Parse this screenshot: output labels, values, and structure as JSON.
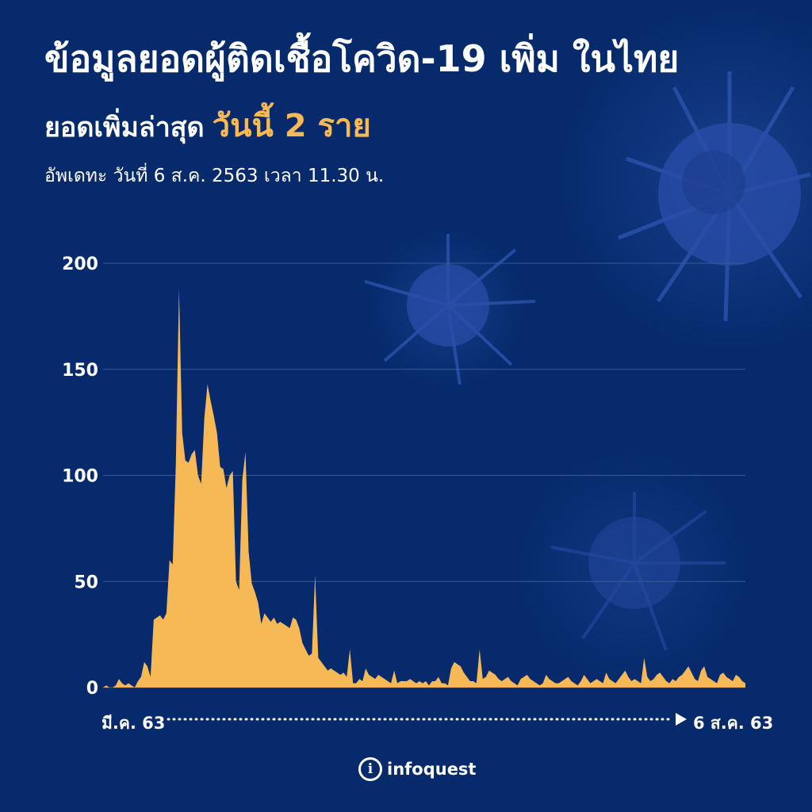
{
  "header": {
    "title": "ข้อมูลยอดผู้ติดเชื้อโควิด-19 เพิ่ม ในไทย",
    "subtitle_lead": "ยอดเพิ่มล่าสุด",
    "subtitle_highlight": "วันนี้ 2 ราย",
    "updated": "อัพเดทะ วันที่ 6 ส.ค. 2563 เวลา 11.30 น."
  },
  "colors": {
    "background": "#062a6b",
    "area_fill": "#f7b955",
    "highlight_text": "#f7b955",
    "gridline": "#3a5a9a"
  },
  "chart_data": {
    "type": "area",
    "x_start_label": "มี.ค. 63",
    "x_end_label": "6 ส.ค. 63",
    "y_ticks": [
      0,
      50,
      100,
      150,
      200
    ],
    "ylim": [
      0,
      200
    ],
    "grid": true,
    "values": [
      0,
      1,
      0,
      0,
      1,
      4,
      2,
      1,
      2,
      1,
      0,
      3,
      5,
      12,
      10,
      5,
      32,
      33,
      34,
      32,
      35,
      60,
      58,
      106,
      188,
      120,
      107,
      106,
      110,
      112,
      100,
      96,
      127,
      143,
      135,
      128,
      120,
      104,
      103,
      94,
      100,
      102,
      50,
      46,
      98,
      111,
      64,
      49,
      45,
      40,
      30,
      35,
      33,
      31,
      33,
      30,
      31,
      30,
      29,
      28,
      33,
      32,
      28,
      21,
      18,
      15,
      16,
      53,
      14,
      12,
      10,
      8,
      9,
      8,
      7,
      6,
      7,
      5,
      18,
      2,
      2,
      4,
      3,
      9,
      6,
      5,
      4,
      6,
      5,
      4,
      3,
      2,
      8,
      2,
      3,
      3,
      3,
      4,
      3,
      2,
      3,
      2,
      3,
      1,
      3,
      3,
      5,
      2,
      2,
      1,
      9,
      12,
      11,
      10,
      7,
      5,
      3,
      3,
      2,
      18,
      4,
      5,
      8,
      7,
      6,
      4,
      3,
      4,
      5,
      3,
      2,
      1,
      4,
      5,
      6,
      4,
      3,
      2,
      1,
      2,
      6,
      4,
      3,
      2,
      2,
      3,
      4,
      5,
      3,
      2,
      1,
      3,
      6,
      4,
      2,
      3,
      4,
      3,
      2,
      7,
      4,
      3,
      2,
      4,
      6,
      8,
      5,
      3,
      4,
      3,
      2,
      14,
      5,
      3,
      4,
      6,
      7,
      5,
      3,
      2,
      4,
      3,
      5,
      6,
      8,
      10,
      7,
      4,
      3,
      8,
      10,
      5,
      4,
      3,
      2,
      6,
      7,
      5,
      4,
      3,
      6,
      5,
      3,
      2
    ],
    "last_value": 2
  },
  "logo": {
    "mark": "i",
    "text": "infoquest"
  }
}
